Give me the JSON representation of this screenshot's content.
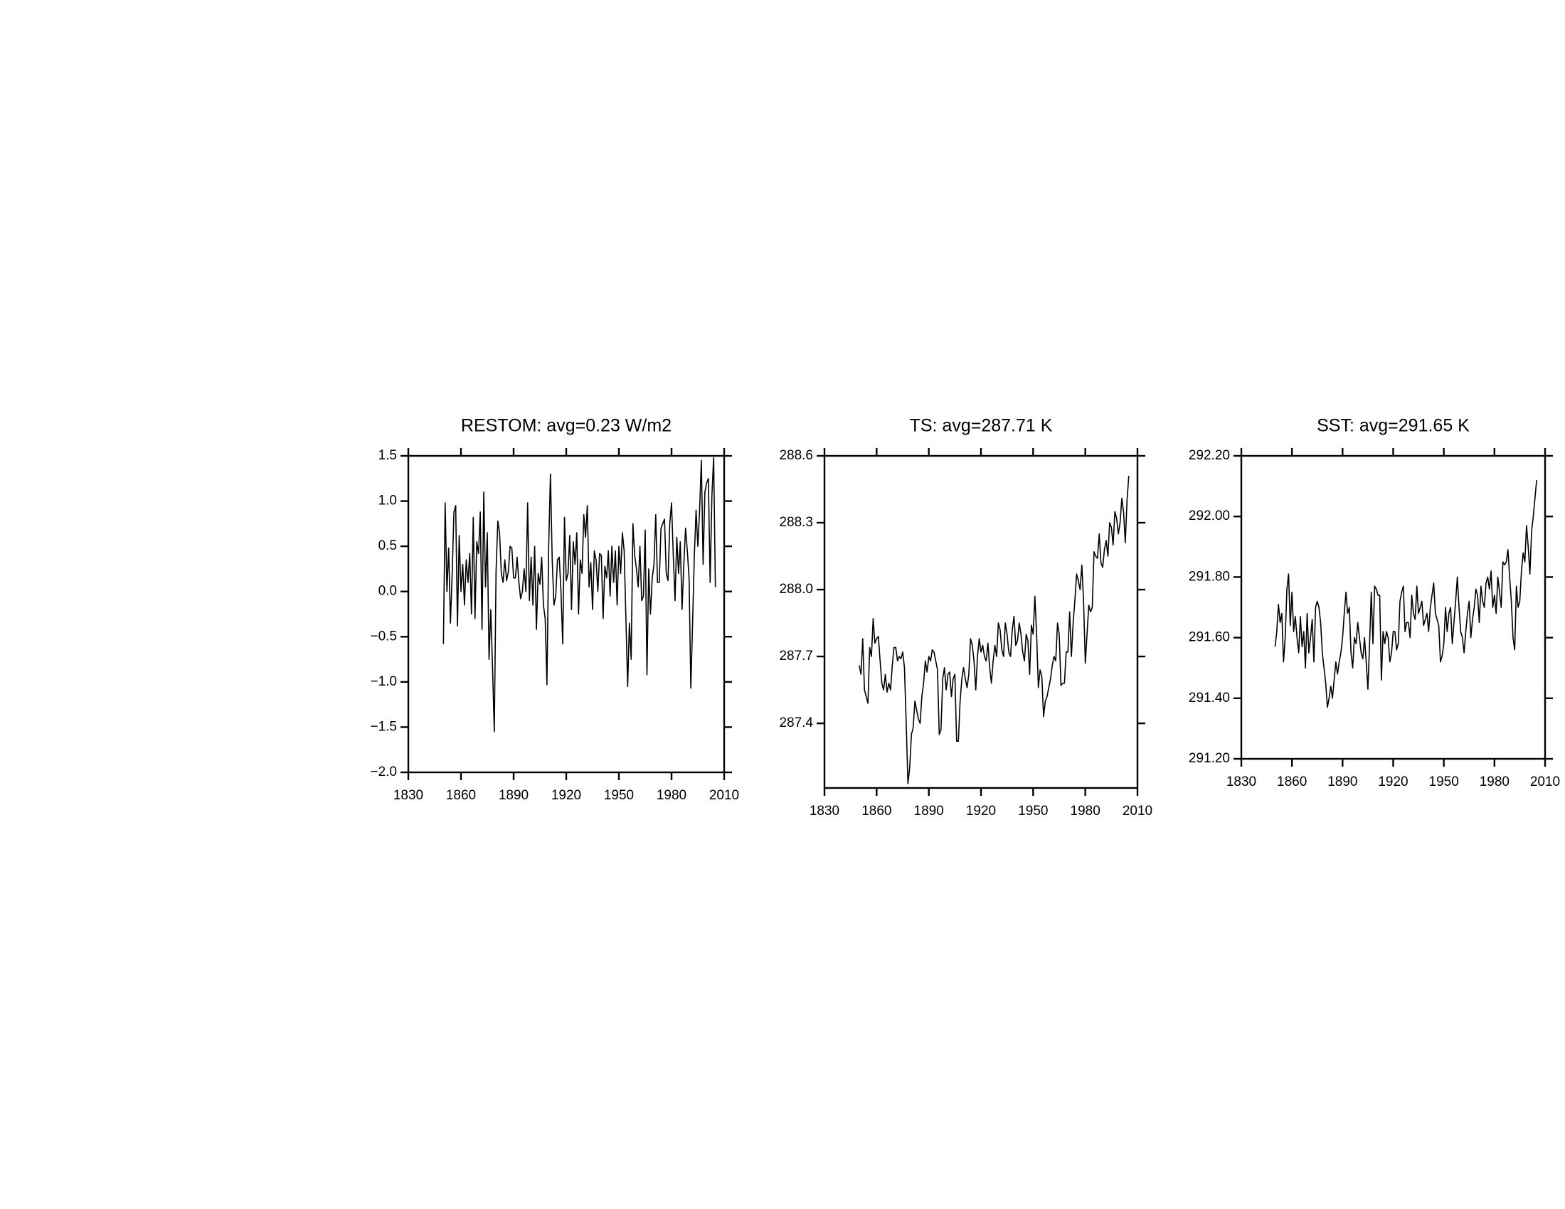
{
  "chart_data": [
    {
      "type": "line",
      "title": "RESTOM: avg=0.23 W/m2",
      "color": "#000000",
      "xlim": [
        1830,
        2010
      ],
      "xticks": [
        1830,
        1860,
        1890,
        1920,
        1950,
        1980,
        2010
      ],
      "ylim": [
        -2,
        1.5
      ],
      "yticks": [
        1.5,
        {
          "value": 1,
          "label": "1.0"
        },
        0.5,
        {
          "value": 0,
          "label": "0.0"
        },
        {
          "value": -0.5,
          "label": "−0.5"
        },
        {
          "value": -1,
          "label": "−1.0"
        },
        {
          "value": -1.5,
          "label": "−1.5"
        },
        {
          "value": -2,
          "label": "−2.0"
        }
      ],
      "x": [
        1850,
        1851,
        1852,
        1853,
        1854,
        1855,
        1856,
        1857,
        1858,
        1859,
        1860,
        1861,
        1862,
        1863,
        1864,
        1865,
        1866,
        1867,
        1868,
        1869,
        1870,
        1871,
        1872,
        1873,
        1874,
        1875,
        1876,
        1877,
        1878,
        1879,
        1880,
        1881,
        1882,
        1883,
        1884,
        1885,
        1886,
        1887,
        1888,
        1889,
        1890,
        1891,
        1892,
        1893,
        1894,
        1895,
        1896,
        1897,
        1898,
        1899,
        1900,
        1901,
        1902,
        1903,
        1904,
        1905,
        1906,
        1907,
        1908,
        1909,
        1910,
        1911,
        1912,
        1913,
        1914,
        1915,
        1916,
        1917,
        1918,
        1919,
        1920,
        1921,
        1922,
        1923,
        1924,
        1925,
        1926,
        1927,
        1928,
        1929,
        1930,
        1931,
        1932,
        1933,
        1934,
        1935,
        1936,
        1937,
        1938,
        1939,
        1940,
        1941,
        1942,
        1943,
        1944,
        1945,
        1946,
        1947,
        1948,
        1949,
        1950,
        1951,
        1952,
        1953,
        1954,
        1955,
        1956,
        1957,
        1958,
        1959,
        1960,
        1961,
        1962,
        1963,
        1964,
        1965,
        1966,
        1967,
        1968,
        1969,
        1970,
        1971,
        1972,
        1973,
        1974,
        1975,
        1976,
        1977,
        1978,
        1979,
        1980,
        1981,
        1982,
        1983,
        1984,
        1985,
        1986,
        1987,
        1988,
        1989,
        1990,
        1991,
        1992,
        1993,
        1994,
        1995,
        1996,
        1997,
        1998,
        1999,
        2000,
        2001,
        2002,
        2003,
        2004,
        2005
      ],
      "values": [
        -0.58,
        0.98,
        0.0,
        0.48,
        -0.35,
        0.2,
        0.88,
        0.95,
        -0.38,
        0.62,
        0.0,
        0.3,
        -0.15,
        0.35,
        0.1,
        0.42,
        -0.25,
        0.82,
        -0.3,
        0.55,
        0.42,
        0.88,
        -0.42,
        1.1,
        0.05,
        0.65,
        -0.75,
        -0.2,
        -0.85,
        -1.55,
        0.22,
        0.78,
        0.65,
        0.2,
        0.1,
        0.35,
        0.12,
        0.22,
        0.5,
        0.48,
        0.15,
        0.15,
        0.38,
        0.1,
        -0.08,
        0.0,
        0.25,
        0.0,
        0.98,
        -0.1,
        0.38,
        -0.15,
        0.5,
        -0.42,
        0.2,
        0.08,
        0.38,
        -0.15,
        -0.3,
        -1.03,
        0.5,
        1.3,
        0.35,
        -0.15,
        -0.05,
        0.35,
        0.38,
        0.0,
        -0.58,
        0.82,
        0.12,
        0.2,
        0.62,
        -0.2,
        0.55,
        0.3,
        0.65,
        -0.25,
        0.35,
        0.2,
        0.85,
        0.6,
        0.95,
        0.05,
        0.32,
        -0.2,
        0.45,
        0.35,
        0.0,
        0.42,
        0.4,
        -0.3,
        0.28,
        0.15,
        0.45,
        -0.05,
        0.5,
        0.1,
        0.45,
        -0.15,
        0.5,
        0.2,
        0.65,
        0.45,
        -0.3,
        -1.05,
        -0.35,
        -0.75,
        0.75,
        0.4,
        0.25,
        0.05,
        0.5,
        -0.1,
        -0.05,
        0.68,
        -0.92,
        0.25,
        -0.25,
        0.15,
        0.3,
        0.85,
        0.1,
        0.1,
        0.7,
        0.75,
        0.8,
        0.2,
        0.12,
        0.75,
        0.98,
        0.4,
        -0.1,
        0.6,
        0.2,
        0.55,
        -0.2,
        0.3,
        0.7,
        0.45,
        0.15,
        -1.07,
        -0.35,
        0.4,
        0.9,
        0.5,
        0.9,
        1.45,
        0.3,
        1.1,
        1.2,
        1.25,
        0.1,
        1.05,
        1.48,
        0.05
      ]
    },
    {
      "type": "line",
      "title": "TS: avg=287.71 K",
      "color": "#000000",
      "xlim": [
        1830,
        2010
      ],
      "xticks": [
        1830,
        1860,
        1890,
        1920,
        1950,
        1980,
        2010
      ],
      "ylim": [
        287.11,
        288.6
      ],
      "yticks": [
        288.6,
        288.3,
        {
          "value": 288,
          "label": "288.0"
        },
        287.7,
        287.4
      ],
      "x": [
        1850,
        1851,
        1852,
        1853,
        1854,
        1855,
        1856,
        1857,
        1858,
        1859,
        1860,
        1861,
        1862,
        1863,
        1864,
        1865,
        1866,
        1867,
        1868,
        1869,
        1870,
        1871,
        1872,
        1873,
        1874,
        1875,
        1876,
        1877,
        1878,
        1879,
        1880,
        1881,
        1882,
        1883,
        1884,
        1885,
        1886,
        1887,
        1888,
        1889,
        1890,
        1891,
        1892,
        1893,
        1894,
        1895,
        1896,
        1897,
        1898,
        1899,
        1900,
        1901,
        1902,
        1903,
        1904,
        1905,
        1906,
        1907,
        1908,
        1909,
        1910,
        1911,
        1912,
        1913,
        1914,
        1915,
        1916,
        1917,
        1918,
        1919,
        1920,
        1921,
        1922,
        1923,
        1924,
        1925,
        1926,
        1927,
        1928,
        1929,
        1930,
        1931,
        1932,
        1933,
        1934,
        1935,
        1936,
        1937,
        1938,
        1939,
        1940,
        1941,
        1942,
        1943,
        1944,
        1945,
        1946,
        1947,
        1948,
        1949,
        1950,
        1951,
        1952,
        1953,
        1954,
        1955,
        1956,
        1957,
        1958,
        1959,
        1960,
        1961,
        1962,
        1963,
        1964,
        1965,
        1966,
        1967,
        1968,
        1969,
        1970,
        1971,
        1972,
        1973,
        1974,
        1975,
        1976,
        1977,
        1978,
        1979,
        1980,
        1981,
        1982,
        1983,
        1984,
        1985,
        1986,
        1987,
        1988,
        1989,
        1990,
        1991,
        1992,
        1993,
        1994,
        1995,
        1996,
        1997,
        1998,
        1999,
        2000,
        2001,
        2002,
        2003,
        2004,
        2005
      ],
      "values": [
        287.66,
        287.62,
        287.78,
        287.55,
        287.52,
        287.49,
        287.74,
        287.7,
        287.87,
        287.76,
        287.78,
        287.79,
        287.68,
        287.58,
        287.55,
        287.62,
        287.54,
        287.58,
        287.55,
        287.66,
        287.74,
        287.74,
        287.68,
        287.7,
        287.69,
        287.72,
        287.65,
        287.4,
        287.13,
        287.2,
        287.35,
        287.38,
        287.5,
        287.46,
        287.42,
        287.4,
        287.52,
        287.58,
        287.68,
        287.63,
        287.7,
        287.68,
        287.73,
        287.72,
        287.68,
        287.64,
        287.35,
        287.37,
        287.6,
        287.65,
        287.55,
        287.62,
        287.63,
        287.52,
        287.6,
        287.62,
        287.32,
        287.32,
        287.5,
        287.6,
        287.65,
        287.6,
        287.56,
        287.62,
        287.78,
        287.75,
        287.68,
        287.55,
        287.7,
        287.78,
        287.72,
        287.75,
        287.7,
        287.68,
        287.76,
        287.65,
        287.58,
        287.68,
        287.75,
        287.7,
        287.85,
        287.82,
        287.73,
        287.7,
        287.85,
        287.8,
        287.72,
        287.7,
        287.82,
        287.88,
        287.75,
        287.77,
        287.85,
        287.8,
        287.72,
        287.68,
        287.8,
        287.77,
        287.62,
        287.84,
        287.8,
        287.97,
        287.8,
        287.56,
        287.64,
        287.61,
        287.43,
        287.5,
        287.52,
        287.56,
        287.6,
        287.66,
        287.7,
        287.68,
        287.85,
        287.8,
        287.57,
        287.58,
        287.58,
        287.72,
        287.72,
        287.9,
        287.7,
        287.85,
        287.95,
        288.07,
        288.04,
        288.0,
        288.11,
        287.95,
        287.67,
        287.8,
        287.93,
        287.9,
        287.92,
        288.17,
        288.15,
        288.14,
        288.25,
        288.12,
        288.1,
        288.18,
        288.22,
        288.15,
        288.3,
        288.28,
        288.2,
        288.35,
        288.32,
        288.25,
        288.3,
        288.41,
        288.35,
        288.21,
        288.4,
        288.51
      ]
    },
    {
      "type": "line",
      "title": "SST: avg=291.65 K",
      "color": "#000000",
      "xlim": [
        1830,
        2010
      ],
      "xticks": [
        1830,
        1860,
        1890,
        1920,
        1950,
        1980,
        2010
      ],
      "ylim": [
        291.2,
        292.2
      ],
      "yticks": [
        {
          "value": 292.2,
          "label": "292.20"
        },
        {
          "value": 292,
          "label": "292.00"
        },
        {
          "value": 291.8,
          "label": "291.80"
        },
        {
          "value": 291.6,
          "label": "291.60"
        },
        {
          "value": 291.4,
          "label": "291.40"
        },
        {
          "value": 291.2,
          "label": "291.20"
        }
      ],
      "x": [
        1850,
        1851,
        1852,
        1853,
        1854,
        1855,
        1856,
        1857,
        1858,
        1859,
        1860,
        1861,
        1862,
        1863,
        1864,
        1865,
        1866,
        1867,
        1868,
        1869,
        1870,
        1871,
        1872,
        1873,
        1874,
        1875,
        1876,
        1877,
        1878,
        1879,
        1880,
        1881,
        1882,
        1883,
        1884,
        1885,
        1886,
        1887,
        1888,
        1889,
        1890,
        1891,
        1892,
        1893,
        1894,
        1895,
        1896,
        1897,
        1898,
        1899,
        1900,
        1901,
        1902,
        1903,
        1904,
        1905,
        1906,
        1907,
        1908,
        1909,
        1910,
        1911,
        1912,
        1913,
        1914,
        1915,
        1916,
        1917,
        1918,
        1919,
        1920,
        1921,
        1922,
        1923,
        1924,
        1925,
        1926,
        1927,
        1928,
        1929,
        1930,
        1931,
        1932,
        1933,
        1934,
        1935,
        1936,
        1937,
        1938,
        1939,
        1940,
        1941,
        1942,
        1943,
        1944,
        1945,
        1946,
        1947,
        1948,
        1949,
        1950,
        1951,
        1952,
        1953,
        1954,
        1955,
        1956,
        1957,
        1958,
        1959,
        1960,
        1961,
        1962,
        1963,
        1964,
        1965,
        1966,
        1967,
        1968,
        1969,
        1970,
        1971,
        1972,
        1973,
        1974,
        1975,
        1976,
        1977,
        1978,
        1979,
        1980,
        1981,
        1982,
        1983,
        1984,
        1985,
        1986,
        1987,
        1988,
        1989,
        1990,
        1991,
        1992,
        1993,
        1994,
        1995,
        1996,
        1997,
        1998,
        1999,
        2000,
        2001,
        2002,
        2003,
        2004,
        2005
      ],
      "values": [
        291.57,
        291.62,
        291.71,
        291.65,
        291.68,
        291.52,
        291.6,
        291.76,
        291.81,
        291.64,
        291.75,
        291.62,
        291.67,
        291.6,
        291.55,
        291.67,
        291.57,
        291.62,
        291.5,
        291.68,
        291.55,
        291.6,
        291.66,
        291.52,
        291.7,
        291.72,
        291.7,
        291.65,
        291.55,
        291.5,
        291.45,
        291.37,
        291.4,
        291.44,
        291.4,
        291.46,
        291.52,
        291.48,
        291.52,
        291.55,
        291.6,
        291.68,
        291.75,
        291.68,
        291.7,
        291.55,
        291.5,
        291.6,
        291.58,
        291.65,
        291.6,
        291.55,
        291.53,
        291.6,
        291.52,
        291.43,
        291.58,
        291.75,
        291.58,
        291.77,
        291.76,
        291.74,
        291.74,
        291.46,
        291.62,
        291.58,
        291.62,
        291.6,
        291.52,
        291.55,
        291.62,
        291.62,
        291.56,
        291.58,
        291.72,
        291.75,
        291.77,
        291.62,
        291.65,
        291.65,
        291.6,
        291.74,
        291.68,
        291.66,
        291.77,
        291.68,
        291.7,
        291.72,
        291.64,
        291.66,
        291.68,
        291.62,
        291.7,
        291.74,
        291.78,
        291.68,
        291.66,
        291.64,
        291.52,
        291.54,
        291.58,
        291.7,
        291.62,
        291.68,
        291.7,
        291.58,
        291.65,
        291.72,
        291.8,
        291.7,
        291.62,
        291.6,
        291.55,
        291.62,
        291.68,
        291.72,
        291.6,
        291.66,
        291.7,
        291.76,
        291.74,
        291.65,
        291.77,
        291.72,
        291.7,
        291.78,
        291.8,
        291.76,
        291.82,
        291.7,
        291.74,
        291.68,
        291.8,
        291.75,
        291.7,
        291.85,
        291.84,
        291.85,
        291.89,
        291.8,
        291.72,
        291.6,
        291.56,
        291.77,
        291.7,
        291.72,
        291.82,
        291.88,
        291.85,
        291.97,
        291.9,
        291.81,
        291.95,
        292.0,
        292.06,
        292.12
      ]
    }
  ]
}
